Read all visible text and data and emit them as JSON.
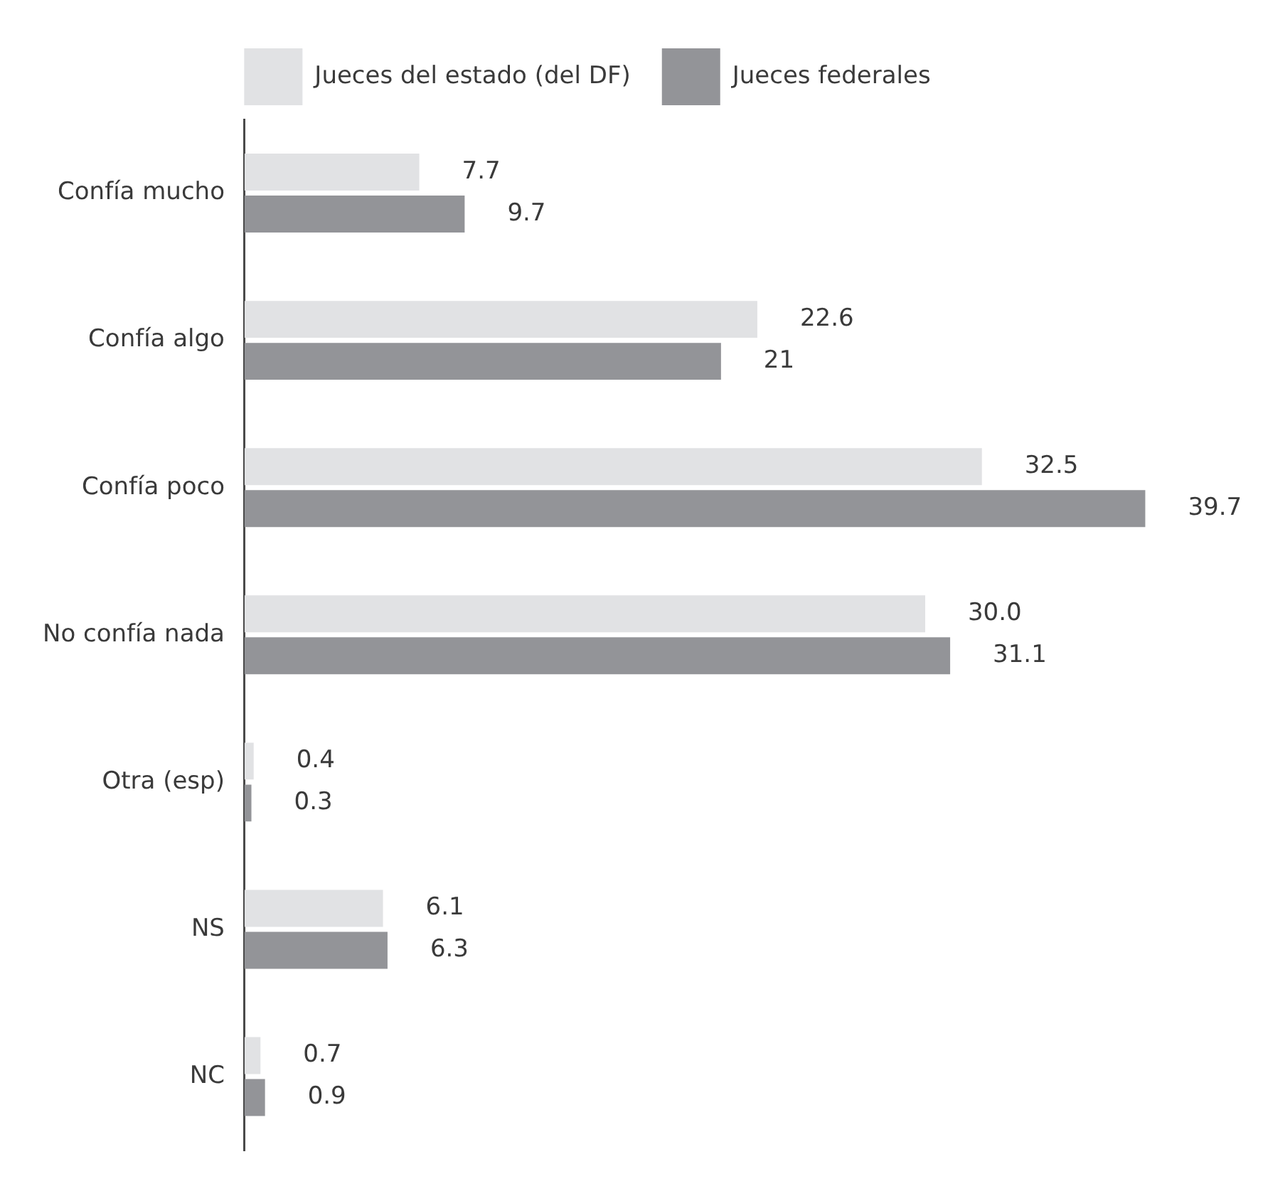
{
  "chart_data": {
    "type": "bar",
    "orientation": "horizontal",
    "categories": [
      "Confía mucho",
      "Confía algo",
      "Confía poco",
      "No confía nada",
      "Otra (esp)",
      "NS",
      "NC"
    ],
    "series": [
      {
        "name": "Jueces del estado (del DF)",
        "color": "#e1e2e4",
        "values": [
          7.7,
          22.6,
          32.5,
          30.0,
          0.4,
          6.1,
          0.7
        ],
        "value_labels": [
          "7.7",
          "22.6",
          "32.5",
          "30.0",
          "0.4",
          "6.1",
          "0.7"
        ]
      },
      {
        "name": "Jueces federales",
        "color": "#939498",
        "values": [
          9.7,
          21,
          39.7,
          31.1,
          0.3,
          6.3,
          0.9
        ],
        "value_labels": [
          "9.7",
          "21",
          "39.7",
          "31.1",
          "0.3",
          "6.3",
          "0.9"
        ]
      }
    ],
    "legend": "top",
    "tick_labels": "y"
  }
}
